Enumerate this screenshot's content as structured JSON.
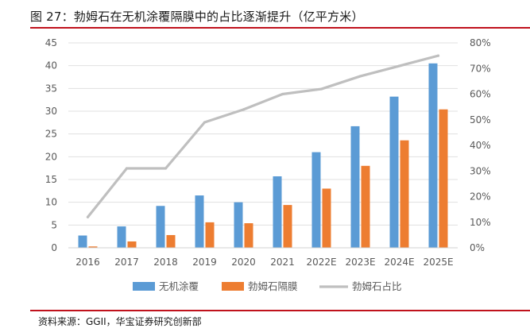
{
  "figure_title": "图 27：勃姆石在无机涂覆隔膜中的占比逐渐提升（亿平方米）",
  "source": "资料来源：GGII，华宝证券研究创新部",
  "colors": {
    "inorganic": "#5b9bd5",
    "boehmite": "#ed7d31",
    "share": "#bfbfbf",
    "rule": "#c0121c",
    "grid": "#e0e0e0",
    "axis_text": "#595959"
  },
  "chart_data": {
    "type": "bar",
    "title": "勃姆石在无机涂覆隔膜中的占比逐渐提升（亿平方米）",
    "categories": [
      "2016",
      "2017",
      "2018",
      "2019",
      "2020",
      "2021",
      "2022E",
      "2023E",
      "2024E",
      "2025E"
    ],
    "series": [
      {
        "name": "无机涂覆",
        "type": "bar",
        "axis": "left",
        "color": "#5b9bd5",
        "values": [
          2.7,
          4.7,
          9.2,
          11.5,
          10.0,
          15.7,
          21.0,
          26.7,
          33.2,
          40.5
        ]
      },
      {
        "name": "勃姆石隔膜",
        "type": "bar",
        "axis": "left",
        "color": "#ed7d31",
        "values": [
          0.3,
          1.4,
          2.8,
          5.6,
          5.4,
          9.4,
          13.0,
          18.0,
          23.6,
          30.4
        ]
      },
      {
        "name": "勃姆石占比",
        "type": "line",
        "axis": "right",
        "color": "#bfbfbf",
        "values": [
          12,
          31,
          31,
          49,
          54,
          60,
          62,
          67,
          71,
          75
        ]
      }
    ],
    "y_left": {
      "min": 0,
      "max": 45,
      "step": 5,
      "tick_labels": [
        "0",
        "5",
        "10",
        "15",
        "20",
        "25",
        "30",
        "35",
        "40",
        "45"
      ]
    },
    "y_right": {
      "min": 0,
      "max": 80,
      "step": 10,
      "tick_labels": [
        "0%",
        "10%",
        "20%",
        "30%",
        "40%",
        "50%",
        "60%",
        "70%",
        "80%"
      ]
    },
    "grid": true,
    "legend_position": "bottom",
    "legend": [
      "无机涂覆",
      "勃姆石隔膜",
      "勃姆石占比"
    ]
  }
}
